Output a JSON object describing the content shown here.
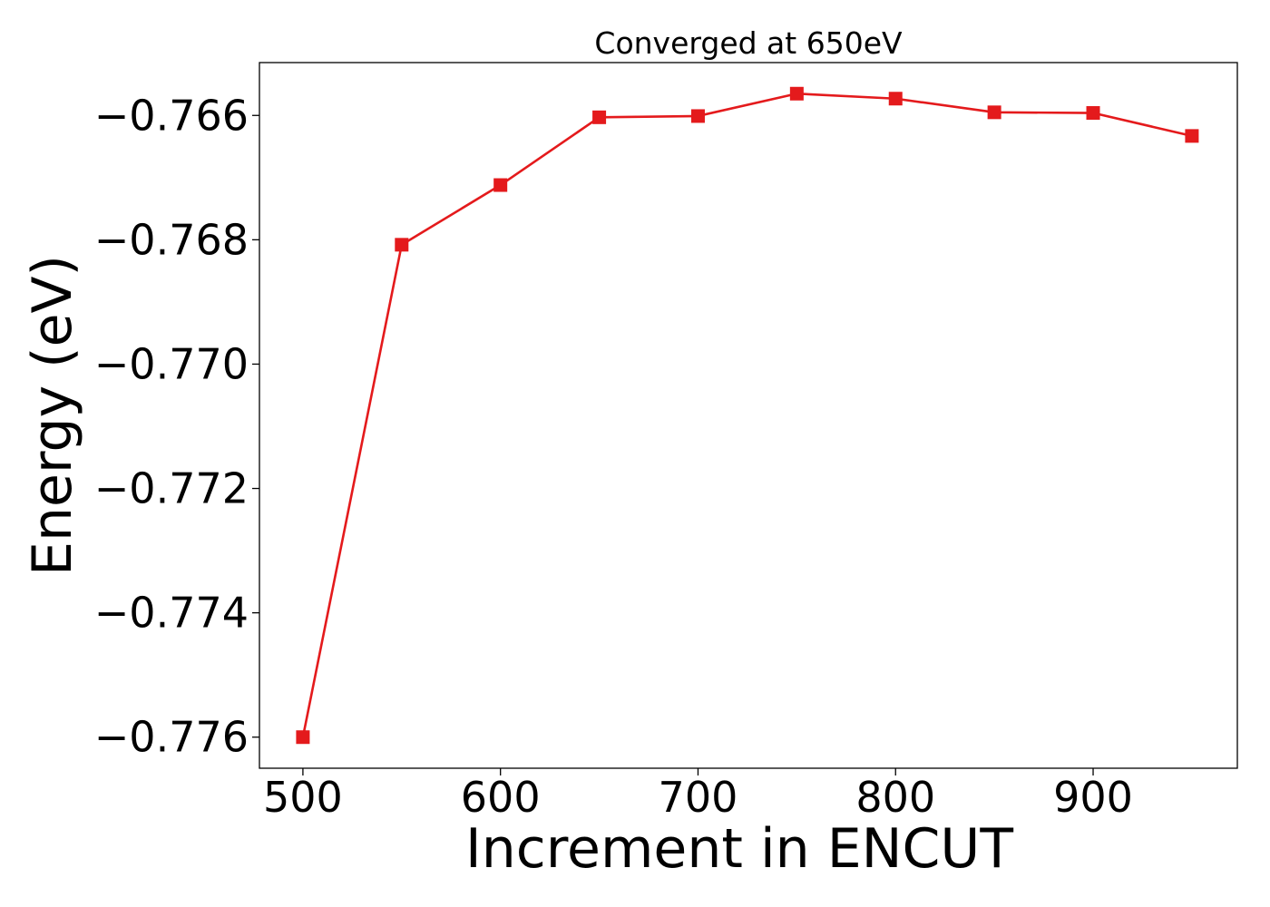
{
  "chart_data": {
    "type": "line",
    "title": "Converged at 650eV",
    "xlabel": "Increment in ENCUT",
    "ylabel": "Energy (eV)",
    "x": [
      500,
      550,
      600,
      650,
      700,
      750,
      800,
      850,
      900,
      950
    ],
    "series": [
      {
        "values": [
          -0.776,
          -0.76808,
          -0.76712,
          -0.76603,
          -0.76601,
          -0.76565,
          -0.76573,
          -0.76595,
          -0.76596,
          -0.76633
        ],
        "color": "#e41a1c",
        "marker": "square"
      }
    ],
    "xlim": [
      478,
      973
    ],
    "ylim": [
      -0.7765,
      -0.76515
    ],
    "xticks": [
      500,
      600,
      700,
      800,
      900
    ],
    "xtick_labels": [
      "500",
      "600",
      "700",
      "800",
      "900"
    ],
    "yticks": [
      -0.776,
      -0.774,
      -0.772,
      -0.77,
      -0.768,
      -0.766
    ],
    "ytick_labels": [
      "−0.776",
      "−0.774",
      "−0.772",
      "−0.770",
      "−0.768",
      "−0.766"
    ],
    "grid": false,
    "legend": "none"
  }
}
